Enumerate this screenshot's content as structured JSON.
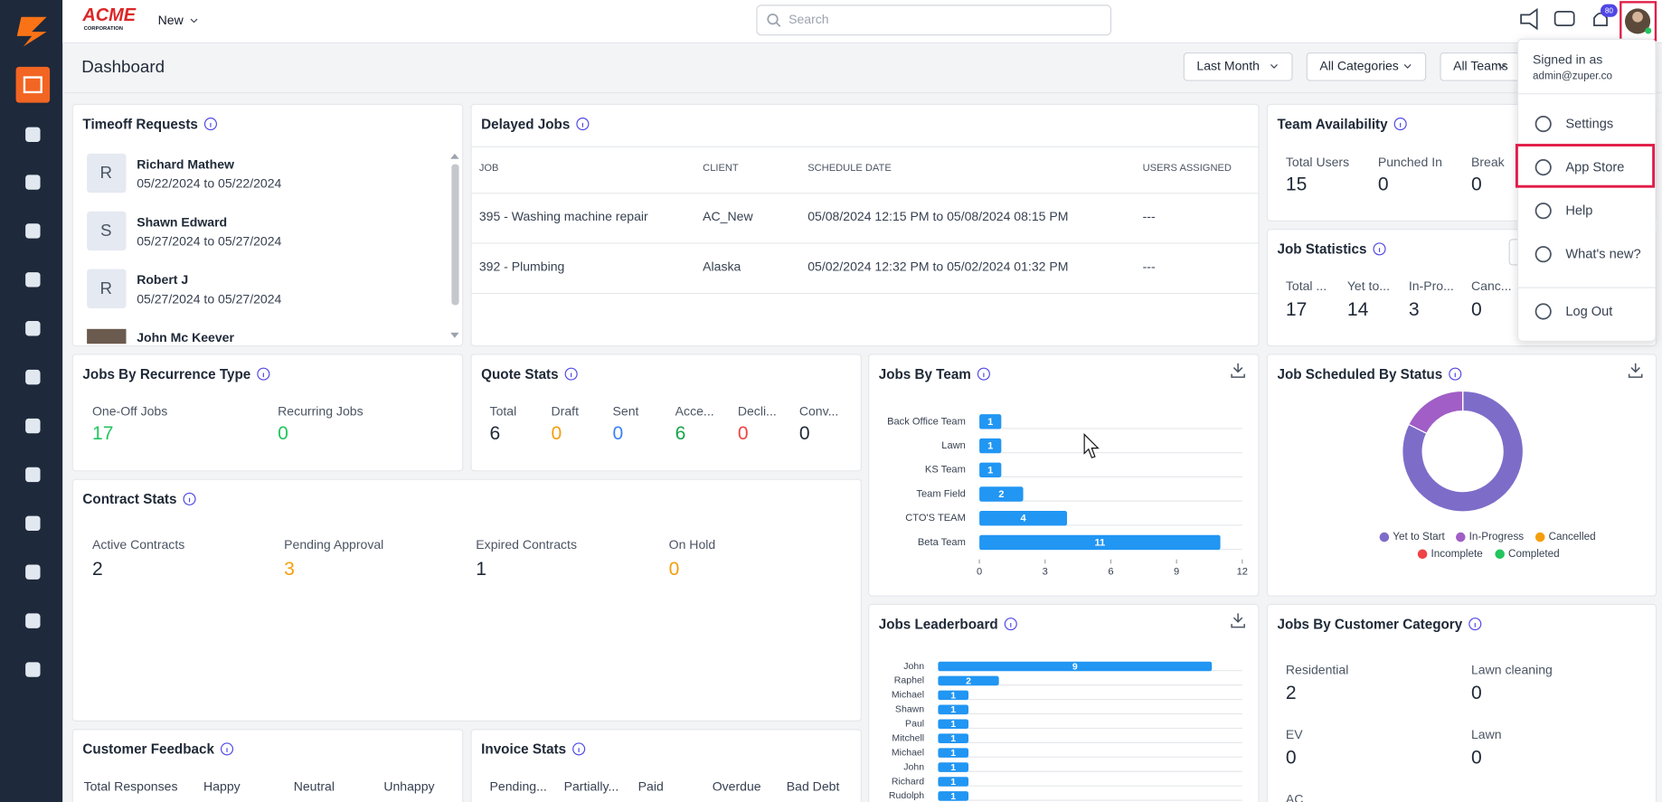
{
  "header": {
    "logo": "ACME",
    "logo_sub": "CORPORATION",
    "new_button": "New",
    "search_placeholder": "Search",
    "notification_count": "80"
  },
  "page_title": "Dashboard",
  "filters": [
    "Last Month",
    "All Categories",
    "All Teams"
  ],
  "user_menu": {
    "signed_in_label": "Signed in as",
    "email": "admin@zuper.co",
    "items": [
      "Settings",
      "App Store",
      "Help",
      "What's new?",
      "Log Out"
    ],
    "highlighted": 1
  },
  "timeoff_requests": {
    "title": "Timeoff Requests",
    "items": [
      {
        "initial": "R",
        "name": "Richard Mathew",
        "dates": "05/22/2024 to 05/22/2024"
      },
      {
        "initial": "S",
        "name": "Shawn Edward",
        "dates": "05/27/2024 to 05/27/2024"
      },
      {
        "initial": "R",
        "name": "Robert J",
        "dates": "05/27/2024 to 05/27/2024"
      },
      {
        "name": "John Mc Keever"
      }
    ]
  },
  "delayed_jobs": {
    "title": "Delayed Jobs",
    "columns": [
      "JOB",
      "CLIENT",
      "SCHEDULE DATE",
      "USERS ASSIGNED"
    ],
    "rows": [
      [
        "395 - Washing machine repair",
        "AC_New",
        "05/08/2024 12:15 PM to 05/08/2024 08:15 PM",
        "---"
      ],
      [
        "392 - Plumbing",
        "Alaska",
        "05/02/2024 12:32 PM to 05/02/2024 01:32 PM",
        "---"
      ]
    ]
  },
  "team_availability": {
    "title": "Team Availability",
    "stats": [
      {
        "label": "Total Users",
        "value": 15
      },
      {
        "label": "Punched In",
        "value": 0
      },
      {
        "label": "Break",
        "value": 0
      }
    ]
  },
  "job_statistics": {
    "title": "Job Statistics",
    "stats": [
      {
        "label": "Total ...",
        "value": 17
      },
      {
        "label": "Yet to...",
        "value": 14
      },
      {
        "label": "In-Pro...",
        "value": 3
      },
      {
        "label": "Canc...",
        "value": 0
      }
    ]
  },
  "jobs_by_recurrence": {
    "title": "Jobs By Recurrence Type",
    "stats": [
      {
        "label": "One-Off Jobs",
        "value": 17,
        "color": "#22c55e"
      },
      {
        "label": "Recurring Jobs",
        "value": 0,
        "color": "#22c55e"
      }
    ]
  },
  "quote_stats": {
    "title": "Quote Stats",
    "stats": [
      {
        "label": "Total",
        "value": 6,
        "color": "#1f2937"
      },
      {
        "label": "Draft",
        "value": 0,
        "color": "#f59e0b"
      },
      {
        "label": "Sent",
        "value": 0,
        "color": "#3b82f6"
      },
      {
        "label": "Acce...",
        "value": 6,
        "color": "#16a34a"
      },
      {
        "label": "Decli...",
        "value": 0,
        "color": "#ef4444"
      },
      {
        "label": "Conv...",
        "value": 0,
        "color": "#1f2937"
      }
    ]
  },
  "contract_stats": {
    "title": "Contract Stats",
    "stats": [
      {
        "label": "Active Contracts",
        "value": 2,
        "color": "#1f2937"
      },
      {
        "label": "Pending Approval",
        "value": 3,
        "color": "#f59e0b"
      },
      {
        "label": "Expired Contracts",
        "value": 1,
        "color": "#1f2937"
      },
      {
        "label": "On Hold",
        "value": 0,
        "color": "#f59e0b"
      }
    ]
  },
  "customer_feedback": {
    "title": "Customer Feedback",
    "columns": [
      "Total Responses",
      "Happy",
      "Neutral",
      "Unhappy"
    ]
  },
  "invoice_stats": {
    "title": "Invoice Stats",
    "columns": [
      "Pending...",
      "Partially...",
      "Paid",
      "Overdue",
      "Bad Debt"
    ]
  },
  "jobs_by_customer_category": {
    "title": "Jobs By Customer Category",
    "stats": [
      {
        "label": "Residential",
        "value": 2
      },
      {
        "label": "Lawn cleaning",
        "value": 0
      },
      {
        "label": "EV",
        "value": 0
      },
      {
        "label": "Lawn",
        "value": 0
      }
    ],
    "more_label": "AC"
  },
  "chart_data": [
    {
      "type": "bar",
      "orientation": "horizontal",
      "title": "Jobs By Team",
      "categories": [
        "Back Office Team",
        "Lawn",
        "KS Team",
        "Team Field",
        "CTO'S TEAM",
        "Beta Team"
      ],
      "values": [
        1,
        1,
        1,
        2,
        4,
        11
      ],
      "color": "#2196f3",
      "xlim": [
        0,
        12
      ],
      "xticks": [
        0,
        3,
        6,
        9,
        12
      ]
    },
    {
      "type": "bar",
      "orientation": "horizontal",
      "title": "Jobs Leaderboard",
      "categories": [
        "John",
        "Raphel",
        "Michael",
        "Shawn",
        "Paul",
        "Mitchell",
        "Michael",
        "John",
        "Richard",
        "Rudolph"
      ],
      "values": [
        9,
        2,
        1,
        1,
        1,
        1,
        1,
        1,
        1,
        1
      ],
      "color": "#2196f3",
      "xlim": [
        0,
        10
      ]
    },
    {
      "type": "pie",
      "donut": true,
      "title": "Job Scheduled By Status",
      "categories": [
        "Yet to Start",
        "In-Progress",
        "Cancelled",
        "Incomplete",
        "Completed"
      ],
      "values": [
        14,
        3,
        0,
        0,
        0
      ],
      "colors": [
        "#7e6cc9",
        "#a05ec6",
        "#f59e0b",
        "#ef4444",
        "#22c55e"
      ]
    }
  ]
}
